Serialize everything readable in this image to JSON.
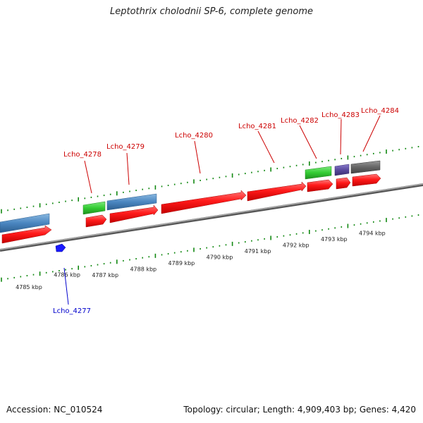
{
  "title": "Leptothrix cholodnii SP-6, complete genome",
  "footer": {
    "accession": "Accession: NC_010524",
    "summary": "Topology: circular; Length: 4,909,403 bp; Genes: 4,420"
  },
  "scale": {
    "labels": [
      "4785 kbp",
      "4786 kbp",
      "4787 kbp",
      "4788 kbp",
      "4789 kbp",
      "4790 kbp",
      "4791 kbp",
      "4792 kbp",
      "4793 kbp",
      "4794 kbp"
    ]
  },
  "genes_labeled": [
    {
      "name": "Lcho_4277",
      "color": "#0000cc"
    },
    {
      "name": "Lcho_4278",
      "color": "#cc0000"
    },
    {
      "name": "Lcho_4279",
      "color": "#cc0000"
    },
    {
      "name": "Lcho_4280",
      "color": "#cc0000"
    },
    {
      "name": "Lcho_4281",
      "color": "#cc0000"
    },
    {
      "name": "Lcho_4282",
      "color": "#cc0000"
    },
    {
      "name": "Lcho_4283",
      "color": "#cc0000"
    },
    {
      "name": "Lcho_4284",
      "color": "#cc0000"
    }
  ],
  "colors": {
    "cds": "#ff1a1a",
    "blue_feature": "#4a86c0",
    "green_feature": "#33cc33",
    "purple_feature": "#5a4a9e",
    "gray_feature": "#666666",
    "minus_strand_gene": "#1a1aff",
    "ticks": "#118811",
    "backbone": "#888888"
  }
}
